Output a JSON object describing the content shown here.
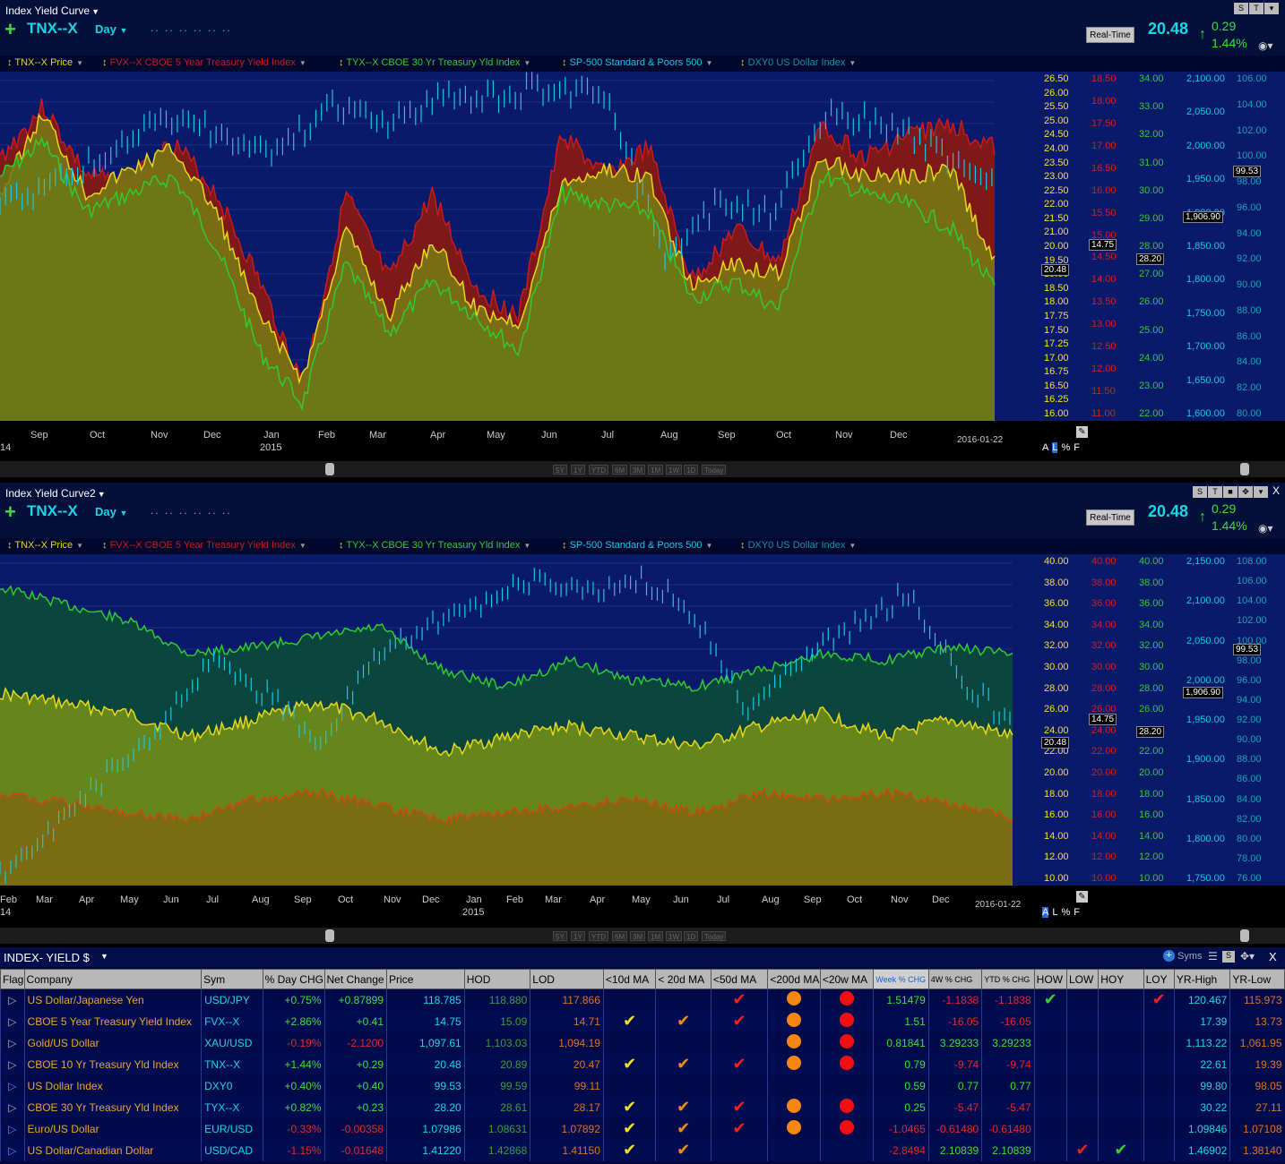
{
  "panel1": {
    "window_title": "Index Yield Curve",
    "symbol": "TNX--X",
    "period": "Day",
    "realtime_label": "Real-Time",
    "last_price": "20.48",
    "net_change": "0.29",
    "pct_change": "1.44%",
    "legend": [
      {
        "label": "TNX--X Price",
        "color": "#e8d81a"
      },
      {
        "label": "FVX--X CBOE 5 Year Treasury Yield Index",
        "color": "#cc1a1a"
      },
      {
        "label": "TYX--X CBOE 30 Yr Treasury Yld Index",
        "color": "#2ecc2e"
      },
      {
        "label": "SP-500 Standard & Poors 500",
        "color": "#19c6e6"
      },
      {
        "label": "DXY0 US Dollar Index",
        "color": "#1890a8"
      }
    ],
    "axis_tnx": [
      "26.50",
      "26.00",
      "25.50",
      "25.00",
      "24.50",
      "24.00",
      "23.50",
      "23.00",
      "22.50",
      "22.00",
      "21.50",
      "21.00",
      "20.00",
      "19.50",
      "19.00",
      "18.50",
      "18.00",
      "17.75",
      "17.50",
      "17.25",
      "17.00",
      "16.75",
      "16.50",
      "16.25",
      "16.00"
    ],
    "axis_fvx": [
      "18.50",
      "18.00",
      "17.50",
      "17.00",
      "16.50",
      "16.00",
      "15.50",
      "15.00",
      "14.50",
      "14.00",
      "13.50",
      "13.00",
      "12.50",
      "12.00",
      "11.50",
      "11.00"
    ],
    "axis_tyx": [
      "34.00",
      "33.00",
      "32.00",
      "31.00",
      "30.00",
      "29.00",
      "28.00",
      "27.00",
      "26.00",
      "25.00",
      "24.00",
      "23.00",
      "22.00"
    ],
    "axis_spx": [
      "2,100.00",
      "2,050.00",
      "2,000.00",
      "1,950.00",
      "1,900.00",
      "1,850.00",
      "1,800.00",
      "1,750.00",
      "1,700.00",
      "1,650.00",
      "1,600.00"
    ],
    "axis_dxy": [
      "106.00",
      "104.00",
      "102.00",
      "100.00",
      "98.00",
      "96.00",
      "94.00",
      "92.00",
      "90.00",
      "88.00",
      "86.00",
      "84.00",
      "82.00",
      "80.00"
    ],
    "markers": {
      "tnx": "20.48",
      "fvx": "14.75",
      "tyx": "28.20",
      "spx": "1,906.90",
      "dxy": "99.53"
    },
    "months": [
      "Sep",
      "Oct",
      "Nov",
      "Dec",
      "Jan",
      "Feb",
      "Mar",
      "Apr",
      "May",
      "Jun",
      "Jul",
      "Aug",
      "Sep",
      "Oct",
      "Nov",
      "Dec"
    ],
    "year_label": "2015",
    "start_label": "14",
    "end_date": "2016-01-22",
    "axis_modes": [
      "A",
      "L",
      "%",
      "F"
    ],
    "ranges": [
      "5Y",
      "1Y",
      "YTD",
      "6M",
      "3M",
      "1M",
      "1W",
      "1D",
      "Today"
    ]
  },
  "panel2": {
    "window_title": "Index Yield Curve2",
    "symbol": "TNX--X",
    "period": "Day",
    "realtime_label": "Real-Time",
    "last_price": "20.48",
    "net_change": "0.29",
    "pct_change": "1.44%",
    "legend": [
      {
        "label": "TNX--X Price",
        "color": "#e8d81a"
      },
      {
        "label": "FVX--X CBOE 5 Year Treasury Yield Index",
        "color": "#cc1a1a"
      },
      {
        "label": "TYX--X CBOE 30 Yr Treasury Yld Index",
        "color": "#2ecc2e"
      },
      {
        "label": "SP-500 Standard & Poors 500",
        "color": "#19c6e6"
      },
      {
        "label": "DXY0 US Dollar Index",
        "color": "#1890a8"
      }
    ],
    "axis_tnx": [
      "40.00",
      "38.00",
      "36.00",
      "34.00",
      "32.00",
      "30.00",
      "28.00",
      "26.00",
      "24.00",
      "22.00",
      "20.00",
      "18.00",
      "16.00",
      "14.00",
      "12.00",
      "10.00"
    ],
    "axis_fvx": [
      "40.00",
      "38.00",
      "36.00",
      "34.00",
      "32.00",
      "30.00",
      "28.00",
      "26.00",
      "24.00",
      "22.00",
      "20.00",
      "18.00",
      "16.00",
      "14.00",
      "12.00",
      "10.00"
    ],
    "axis_tyx": [
      "40.00",
      "38.00",
      "36.00",
      "34.00",
      "32.00",
      "30.00",
      "28.00",
      "26.00",
      "24.00",
      "22.00",
      "20.00",
      "18.00",
      "16.00",
      "14.00",
      "12.00",
      "10.00"
    ],
    "axis_spx": [
      "2,150.00",
      "2,100.00",
      "2,050.00",
      "2,000.00",
      "1,950.00",
      "1,900.00",
      "1,850.00",
      "1,800.00",
      "1,750.00"
    ],
    "axis_dxy": [
      "108.00",
      "106.00",
      "104.00",
      "102.00",
      "100.00",
      "98.00",
      "96.00",
      "94.00",
      "92.00",
      "90.00",
      "88.00",
      "86.00",
      "84.00",
      "82.00",
      "80.00",
      "78.00",
      "76.00"
    ],
    "markers": {
      "tnx": "20.48",
      "fvx": "14.75",
      "tyx": "28.20",
      "spx": "1,906.90",
      "dxy": "99.53"
    },
    "months": [
      "Feb",
      "Mar",
      "Apr",
      "May",
      "Jun",
      "Jul",
      "Aug",
      "Sep",
      "Oct",
      "Nov",
      "Dec",
      "Jan",
      "Feb",
      "Mar",
      "Apr",
      "May",
      "Jun",
      "Jul",
      "Aug",
      "Sep",
      "Oct",
      "Nov",
      "Dec"
    ],
    "year_label": "2015",
    "start_label": "14",
    "end_date": "2016-01-22",
    "axis_modes": [
      "A",
      "L",
      "%",
      "F"
    ],
    "ranges": [
      "5Y",
      "1Y",
      "YTD",
      "6M",
      "3M",
      "1M",
      "1W",
      "1D",
      "Today"
    ]
  },
  "grid": {
    "title": "INDEX- YIELD $",
    "syms_label": "Syms",
    "columns": [
      "Flag",
      "Company",
      "Sym",
      "% Day CHG",
      "Net Change",
      "Price",
      "HOD",
      "LOD",
      "<10d MA",
      "< 20d MA",
      "<50d MA",
      "<200d MA",
      "<20w MA",
      "Week % CHG",
      "4W % CHG",
      "YTD % CHG",
      "HOW",
      "LOW",
      "HOY",
      "LOY",
      "YR-High",
      "YR-Low"
    ],
    "rows": [
      {
        "company": "US Dollar/Japanese Yen",
        "sym": "USD/JPY",
        "daychg": "+0.75%",
        "net": "+0.87899",
        "price": "118.785",
        "hod": "118.880",
        "lod": "117.866",
        "ma10": "",
        "ma20": "",
        "ma50": "r",
        "ma200": "o",
        "ma20w": "r",
        "week": "1.51479",
        "w4": "-1.1838",
        "ytd": "-1.1838",
        "how": "g",
        "low": "",
        "hoy": "",
        "loy": "r",
        "yrh": "120.467",
        "yrl": "115.973",
        "flag": "w"
      },
      {
        "company": "CBOE 5 Year Treasury Yield Index",
        "sym": "FVX--X",
        "daychg": "+2.86%",
        "net": "+0.41",
        "price": "14.75",
        "hod": "15.09",
        "lod": "14.71",
        "ma10": "y",
        "ma20": "o",
        "ma50": "r",
        "ma200": "o",
        "ma20w": "r",
        "week": "1.51",
        "w4": "-16.05",
        "ytd": "-16.05",
        "how": "",
        "low": "",
        "hoy": "",
        "loy": "",
        "yrh": "17.39",
        "yrl": "13.73",
        "flag": "w"
      },
      {
        "company": "Gold/US Dollar",
        "sym": "XAU/USD",
        "daychg": "-0.19%",
        "net": "-2.1200",
        "price": "1,097.61",
        "hod": "1,103.03",
        "lod": "1,094.19",
        "ma10": "",
        "ma20": "",
        "ma50": "",
        "ma200": "o",
        "ma20w": "r",
        "week": "0.81841",
        "w4": "3.29233",
        "ytd": "3.29233",
        "how": "",
        "low": "",
        "hoy": "",
        "loy": "",
        "yrh": "1,113.22",
        "yrl": "1,061.95",
        "flag": "w"
      },
      {
        "company": "CBOE 10 Yr Treasury Yld Index",
        "sym": "TNX--X",
        "daychg": "+1.44%",
        "net": "+0.29",
        "price": "20.48",
        "hod": "20.89",
        "lod": "20.47",
        "ma10": "y",
        "ma20": "o",
        "ma50": "r",
        "ma200": "o",
        "ma20w": "r",
        "week": "0.79",
        "w4": "-9.74",
        "ytd": "-9.74",
        "how": "",
        "low": "",
        "hoy": "",
        "loy": "",
        "yrh": "22.61",
        "yrl": "19.39",
        "flag": "w"
      },
      {
        "company": "US Dollar Index",
        "sym": "DXY0",
        "daychg": "+0.40%",
        "net": "+0.40",
        "price": "99.53",
        "hod": "99.59",
        "lod": "99.11",
        "ma10": "",
        "ma20": "",
        "ma50": "",
        "ma200": "",
        "ma20w": "",
        "week": "0.59",
        "w4": "0.77",
        "ytd": "0.77",
        "how": "",
        "low": "",
        "hoy": "",
        "loy": "",
        "yrh": "99.80",
        "yrl": "98.05",
        "flag": "b"
      },
      {
        "company": "CBOE 30 Yr Treasury Yld Index",
        "sym": "TYX--X",
        "daychg": "+0.82%",
        "net": "+0.23",
        "price": "28.20",
        "hod": "28.61",
        "lod": "28.17",
        "ma10": "y",
        "ma20": "o",
        "ma50": "r",
        "ma200": "o",
        "ma20w": "r",
        "week": "0.25",
        "w4": "-5.47",
        "ytd": "-5.47",
        "how": "",
        "low": "",
        "hoy": "",
        "loy": "",
        "yrh": "30.22",
        "yrl": "27.11",
        "flag": "w"
      },
      {
        "company": "Euro/US Dollar",
        "sym": "EUR/USD",
        "daychg": "-0.33%",
        "net": "-0.00358",
        "price": "1.07986",
        "hod": "1.08631",
        "lod": "1.07892",
        "ma10": "y",
        "ma20": "o",
        "ma50": "r",
        "ma200": "o",
        "ma20w": "r",
        "week": "-1.0465",
        "w4": "-0.61480",
        "ytd": "-0.61480",
        "how": "",
        "low": "",
        "hoy": "",
        "loy": "",
        "yrh": "1.09846",
        "yrl": "1.07108",
        "flag": "b"
      },
      {
        "company": "US Dollar/Canadian Dollar",
        "sym": "USD/CAD",
        "daychg": "-1.15%",
        "net": "-0.01648",
        "price": "1.41220",
        "hod": "1.42868",
        "lod": "1.41150",
        "ma10": "y",
        "ma20": "o",
        "ma50": "",
        "ma200": "",
        "ma20w": "",
        "week": "-2.8494",
        "w4": "2.10839",
        "ytd": "2.10839",
        "how": "",
        "low": "r",
        "hoy": "g",
        "loy": "",
        "yrh": "1.46902",
        "yrl": "1.38140",
        "flag": "b"
      }
    ]
  }
}
